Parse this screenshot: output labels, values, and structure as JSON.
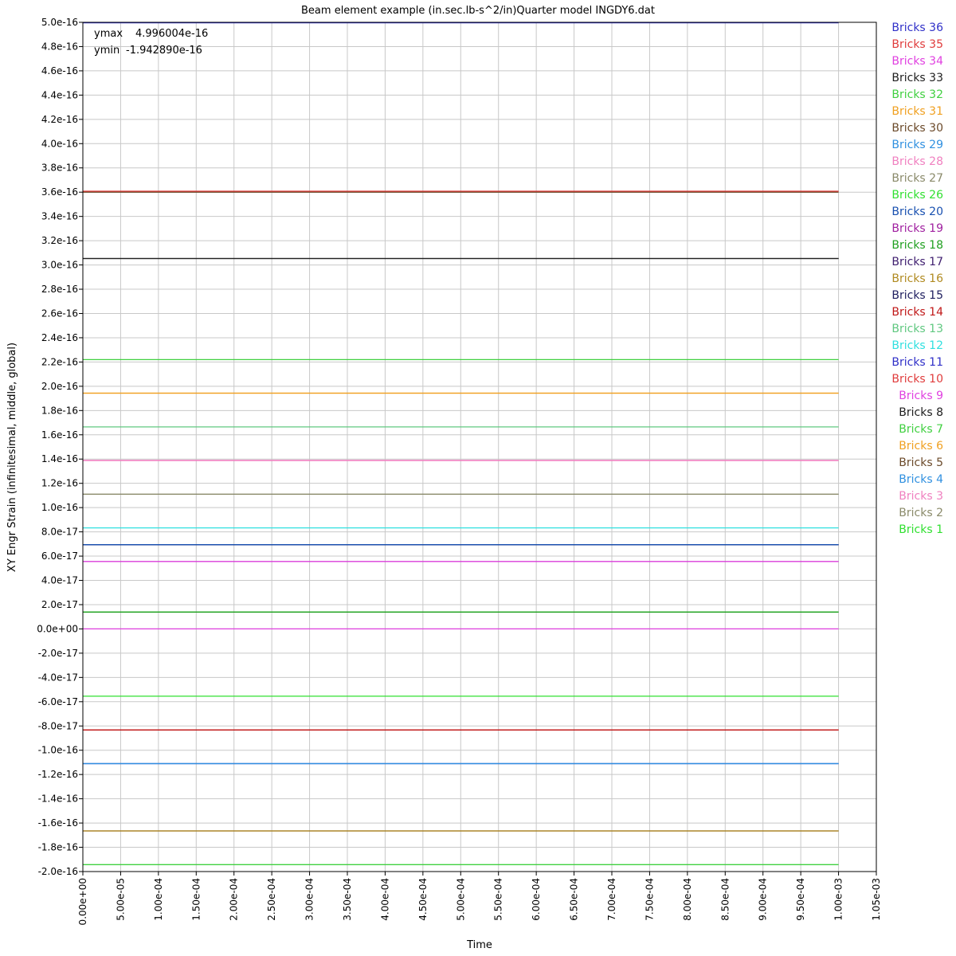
{
  "chart_data": {
    "type": "line",
    "title": "Beam element example (in.sec.lb-s^2/in)Quarter model INGDY6.dat",
    "xlabel": "Time",
    "ylabel": "XY Engr Strain (infinitesimal, middle, global)",
    "xlim": [
      0,
      0.00105
    ],
    "ylim": [
      -2e-16,
      5e-16
    ],
    "grid": true,
    "legend_placement": "right",
    "x_tick_labels": [
      "0.00e+00",
      "5.00e-05",
      "1.00e-04",
      "1.50e-04",
      "2.00e-04",
      "2.50e-04",
      "3.00e-04",
      "3.50e-04",
      "4.00e-04",
      "4.50e-04",
      "5.00e-04",
      "5.50e-04",
      "6.00e-04",
      "6.50e-04",
      "7.00e-04",
      "7.50e-04",
      "8.00e-04",
      "8.50e-04",
      "9.00e-04",
      "9.50e-04",
      "1.00e-03",
      "1.05e-03"
    ],
    "y_tick_labels": [
      "5.0e-16",
      "4.8e-16",
      "4.6e-16",
      "4.4e-16",
      "4.2e-16",
      "4.0e-16",
      "3.8e-16",
      "3.6e-16",
      "3.4e-16",
      "3.2e-16",
      "3.0e-16",
      "2.8e-16",
      "2.6e-16",
      "2.4e-16",
      "2.2e-16",
      "2.0e-16",
      "1.8e-16",
      "1.6e-16",
      "1.4e-16",
      "1.2e-16",
      "1.0e-16",
      "8.0e-17",
      "6.0e-17",
      "4.0e-17",
      "2.0e-17",
      "0.0e+00",
      "-2.0e-17",
      "-4.0e-17",
      "-6.0e-17",
      "-8.0e-17",
      "-1.0e-16",
      "-1.2e-16",
      "-1.4e-16",
      "-1.6e-16",
      "-1.8e-16",
      "-2.0e-16"
    ],
    "annotations": [
      {
        "label": "ymax",
        "value": "4.996004e-16"
      },
      {
        "label": "ymin",
        "value": "-1.942890e-16"
      }
    ],
    "x": [
      0,
      0.001
    ],
    "series": [
      {
        "name": "Bricks 36",
        "color": "#3030c8",
        "values": [
          4.996e-16,
          4.996e-16
        ]
      },
      {
        "name": "Bricks 35",
        "color": "#e03c3c",
        "values": [
          3.608e-16,
          3.608e-16
        ]
      },
      {
        "name": "Bricks 34",
        "color": "#e040e0",
        "values": [
          5.55e-17,
          5.55e-17
        ]
      },
      {
        "name": "Bricks 33",
        "color": "#202020",
        "values": [
          3.053e-16,
          3.053e-16
        ]
      },
      {
        "name": "Bricks 32",
        "color": "#40d040",
        "values": [
          2.22e-16,
          2.22e-16
        ]
      },
      {
        "name": "Bricks 31",
        "color": "#f0a020",
        "values": [
          1.943e-16,
          1.943e-16
        ]
      },
      {
        "name": "Bricks 30",
        "color": "#6b4a2a",
        "values": [
          3.6e-16,
          3.6e-16
        ]
      },
      {
        "name": "Bricks 29",
        "color": "#3090e0",
        "values": [
          -1.11e-16,
          -1.11e-16
        ]
      },
      {
        "name": "Bricks 28",
        "color": "#f080c0",
        "values": [
          1.39e-16,
          1.39e-16
        ]
      },
      {
        "name": "Bricks 27",
        "color": "#8a8a6a",
        "values": [
          1.11e-16,
          1.11e-16
        ]
      },
      {
        "name": "Bricks 26",
        "color": "#30e030",
        "values": [
          -5.55e-17,
          -5.55e-17
        ]
      },
      {
        "name": "Bricks 20",
        "color": "#1850b0",
        "values": [
          6.94e-17,
          6.94e-17
        ]
      },
      {
        "name": "Bricks 19",
        "color": "#a020a0",
        "values": [
          5.55e-17,
          5.55e-17
        ]
      },
      {
        "name": "Bricks 18",
        "color": "#20a020",
        "values": [
          1.39e-17,
          1.39e-17
        ]
      },
      {
        "name": "Bricks 17",
        "color": "#402070",
        "values": [
          6.94e-17,
          6.94e-17
        ]
      },
      {
        "name": "Bricks 16",
        "color": "#b08a20",
        "values": [
          -1.665e-16,
          -1.665e-16
        ]
      },
      {
        "name": "Bricks 15",
        "color": "#202060",
        "values": [
          6.94e-17,
          6.94e-17
        ]
      },
      {
        "name": "Bricks 14",
        "color": "#c01818",
        "values": [
          -8.33e-17,
          -8.33e-17
        ]
      },
      {
        "name": "Bricks 13",
        "color": "#60c880",
        "values": [
          1.665e-16,
          1.665e-16
        ]
      },
      {
        "name": "Bricks 12",
        "color": "#30e0e0",
        "values": [
          8.33e-17,
          8.33e-17
        ]
      },
      {
        "name": "Bricks 11",
        "color": "#3030c8",
        "values": [
          -1.11e-16,
          -1.11e-16
        ]
      },
      {
        "name": "Bricks 10",
        "color": "#e03c3c",
        "values": [
          -8.33e-17,
          -8.33e-17
        ]
      },
      {
        "name": "Bricks 9",
        "color": "#e040e0",
        "values": [
          0.0,
          0.0
        ]
      },
      {
        "name": "Bricks 8",
        "color": "#202020",
        "values": [
          3.053e-16,
          3.053e-16
        ]
      },
      {
        "name": "Bricks 7",
        "color": "#40d040",
        "values": [
          -1.943e-16,
          -1.943e-16
        ]
      },
      {
        "name": "Bricks 6",
        "color": "#f0a020",
        "values": [
          1.943e-16,
          1.943e-16
        ]
      },
      {
        "name": "Bricks 5",
        "color": "#6b4a2a",
        "values": [
          -1.665e-16,
          -1.665e-16
        ]
      },
      {
        "name": "Bricks 4",
        "color": "#3090e0",
        "values": [
          -1.11e-16,
          -1.11e-16
        ]
      },
      {
        "name": "Bricks 3",
        "color": "#f080c0",
        "values": [
          1.388e-16,
          1.388e-16
        ]
      },
      {
        "name": "Bricks 2",
        "color": "#8a8a6a",
        "values": [
          1.11e-16,
          1.11e-16
        ]
      },
      {
        "name": "Bricks 1",
        "color": "#30e030",
        "values": [
          1.39e-17,
          1.39e-17
        ]
      }
    ]
  }
}
